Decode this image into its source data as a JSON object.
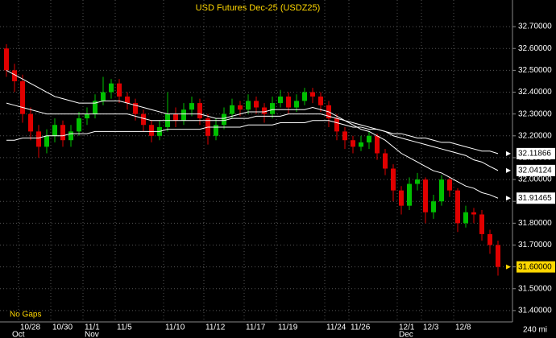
{
  "chart_data": {
    "type": "candlestick",
    "title": "USD Futures Dec-25 (USDZ25)",
    "note": "No Gaps",
    "interval": "240 mi",
    "up_color": "#00c000",
    "down_color": "#e00000",
    "grid": true,
    "categories": [
      null,
      null,
      "10/28",
      null,
      null,
      null,
      "10/30",
      null,
      null,
      null,
      "11/1",
      null,
      null,
      null,
      "11/5",
      null,
      null,
      null,
      null,
      null,
      "11/10",
      null,
      null,
      null,
      null,
      "11/12",
      null,
      null,
      null,
      null,
      "11/17",
      null,
      null,
      null,
      "11/19",
      null,
      null,
      null,
      null,
      null,
      "11/24",
      null,
      null,
      "11/26",
      null,
      null,
      null,
      null,
      null,
      "12/1",
      null,
      null,
      "12/3",
      null,
      null,
      null,
      "12/8",
      null,
      null,
      null,
      null,
      null
    ],
    "months": [
      null,
      "Oct",
      null,
      null,
      null,
      null,
      null,
      null,
      null,
      null,
      "Nov",
      null,
      null,
      null,
      null,
      null,
      null,
      null,
      null,
      null,
      null,
      null,
      null,
      null,
      null,
      null,
      null,
      null,
      null,
      null,
      null,
      null,
      null,
      null,
      null,
      null,
      null,
      null,
      null,
      null,
      null,
      null,
      null,
      null,
      null,
      null,
      null,
      null,
      null,
      "Dec",
      null,
      null,
      null,
      null,
      null,
      null,
      null,
      null,
      null,
      null,
      null,
      null
    ],
    "open": [
      32.6,
      32.5,
      32.45,
      32.3,
      32.22,
      32.15,
      32.2,
      32.25,
      32.18,
      32.22,
      32.28,
      32.3,
      32.36,
      32.4,
      32.44,
      32.38,
      32.35,
      32.3,
      32.25,
      32.2,
      32.24,
      32.3,
      32.27,
      32.32,
      32.35,
      32.28,
      32.2,
      32.25,
      32.3,
      32.34,
      32.32,
      32.36,
      32.33,
      32.3,
      32.35,
      32.38,
      32.33,
      32.36,
      32.4,
      32.38,
      32.34,
      32.28,
      32.22,
      32.18,
      32.15,
      32.17,
      32.2,
      32.12,
      32.05,
      31.95,
      31.88,
      31.98,
      32.0,
      31.85,
      31.9,
      32.0,
      31.95,
      31.8,
      31.85,
      31.84,
      31.75,
      31.7
    ],
    "high": [
      32.62,
      32.53,
      32.48,
      32.33,
      32.25,
      32.23,
      32.28,
      32.27,
      32.25,
      32.31,
      32.33,
      32.39,
      32.47,
      32.46,
      32.46,
      32.4,
      32.37,
      32.32,
      32.27,
      32.27,
      32.4,
      32.33,
      32.35,
      32.38,
      32.37,
      32.3,
      32.28,
      32.33,
      32.37,
      32.36,
      32.39,
      32.38,
      32.35,
      32.38,
      32.41,
      32.4,
      32.39,
      32.42,
      32.42,
      32.4,
      32.36,
      32.3,
      32.24,
      32.2,
      32.2,
      32.22,
      32.21,
      32.14,
      32.07,
      31.97,
      32.01,
      32.03,
      32.01,
      31.93,
      32.02,
      32.01,
      31.96,
      31.88,
      31.87,
      31.86,
      31.77,
      31.72
    ],
    "low": [
      32.47,
      32.4,
      32.26,
      32.18,
      32.1,
      32.12,
      32.17,
      32.15,
      32.15,
      32.2,
      32.25,
      32.28,
      32.34,
      32.37,
      32.35,
      32.32,
      32.27,
      32.22,
      32.17,
      32.18,
      32.22,
      32.24,
      32.25,
      32.29,
      32.25,
      32.16,
      32.18,
      32.23,
      32.28,
      32.29,
      32.3,
      32.3,
      32.26,
      32.28,
      32.33,
      32.3,
      32.31,
      32.34,
      32.35,
      32.31,
      32.24,
      32.18,
      32.14,
      32.12,
      32.13,
      32.14,
      32.09,
      32.02,
      31.9,
      31.84,
      31.86,
      31.95,
      31.8,
      31.82,
      31.88,
      31.92,
      31.76,
      31.78,
      31.8,
      31.72,
      31.66,
      31.56
    ],
    "close": [
      32.5,
      32.45,
      32.3,
      32.22,
      32.15,
      32.2,
      32.25,
      32.18,
      32.22,
      32.28,
      32.3,
      32.36,
      32.4,
      32.44,
      32.38,
      32.35,
      32.3,
      32.25,
      32.2,
      32.24,
      32.3,
      32.27,
      32.32,
      32.35,
      32.28,
      32.2,
      32.25,
      32.3,
      32.34,
      32.32,
      32.36,
      32.33,
      32.3,
      32.35,
      32.38,
      32.33,
      32.36,
      32.4,
      32.38,
      32.34,
      32.28,
      32.22,
      32.18,
      32.15,
      32.17,
      32.2,
      32.12,
      32.05,
      31.95,
      31.88,
      31.98,
      32.0,
      31.85,
      31.9,
      32.0,
      31.95,
      31.8,
      31.85,
      31.84,
      31.75,
      31.7,
      31.6
    ],
    "last_price": {
      "value": 31.6,
      "label": "31.60000"
    },
    "series": [
      {
        "color": "#ffffff",
        "values": [
          32.5,
          32.48,
          32.46,
          32.44,
          32.42,
          32.4,
          32.38,
          32.37,
          32.36,
          32.35,
          32.35,
          32.35,
          32.36,
          32.36,
          32.36,
          32.35,
          32.34,
          32.33,
          32.32,
          32.31,
          32.3,
          32.3,
          32.3,
          32.3,
          32.3,
          32.29,
          32.28,
          32.28,
          32.29,
          32.3,
          32.31,
          32.31,
          32.31,
          32.32,
          32.32,
          32.32,
          32.32,
          32.32,
          32.33,
          32.32,
          32.31,
          32.29,
          32.27,
          32.25,
          32.23,
          32.22,
          32.2,
          32.18,
          32.15,
          32.12,
          32.1,
          32.08,
          32.06,
          32.04,
          32.03,
          32.01,
          31.99,
          31.97,
          31.96,
          31.94,
          31.93,
          31.91465
        ]
      },
      {
        "color": "#ffffff",
        "values": [
          32.35,
          32.34,
          32.33,
          32.32,
          32.31,
          32.3,
          32.3,
          32.3,
          32.3,
          32.3,
          32.3,
          32.3,
          32.3,
          32.3,
          32.3,
          32.3,
          32.29,
          32.28,
          32.27,
          32.27,
          32.27,
          32.27,
          32.27,
          32.27,
          32.27,
          32.27,
          32.27,
          32.27,
          32.28,
          32.28,
          32.28,
          32.29,
          32.29,
          32.29,
          32.29,
          32.3,
          32.3,
          32.3,
          32.3,
          32.3,
          32.29,
          32.28,
          32.27,
          32.26,
          32.25,
          32.24,
          32.23,
          32.22,
          32.2,
          32.19,
          32.18,
          32.17,
          32.16,
          32.15,
          32.14,
          32.13,
          32.12,
          32.11,
          32.09,
          32.08,
          32.06,
          32.04124
        ]
      },
      {
        "color": "#ffffff",
        "values": [
          32.18,
          32.18,
          32.19,
          32.19,
          32.19,
          32.2,
          32.2,
          32.2,
          32.21,
          32.21,
          32.21,
          32.22,
          32.22,
          32.22,
          32.22,
          32.22,
          32.22,
          32.22,
          32.22,
          32.22,
          32.23,
          32.23,
          32.23,
          32.23,
          32.23,
          32.24,
          32.24,
          32.24,
          32.24,
          32.24,
          32.25,
          32.25,
          32.25,
          32.25,
          32.26,
          32.26,
          32.26,
          32.26,
          32.27,
          32.27,
          32.27,
          32.26,
          32.25,
          32.24,
          32.24,
          32.23,
          32.23,
          32.22,
          32.21,
          32.21,
          32.2,
          32.19,
          32.19,
          32.18,
          32.17,
          32.17,
          32.16,
          32.15,
          32.14,
          32.13,
          32.13,
          32.11866
        ]
      }
    ],
    "ylim": [
      31.348,
      32.822
    ],
    "yticks": [
      {
        "value": 31.4,
        "label": "31.40000"
      },
      {
        "value": 31.5,
        "label": "31.50000"
      },
      {
        "value": 31.6,
        "label": "31.60000"
      },
      {
        "value": 31.7,
        "label": "31.70000"
      },
      {
        "value": 31.8,
        "label": "31.80000"
      },
      {
        "value": 31.9,
        "label": "31.90000"
      },
      {
        "value": 32.0,
        "label": "32.00000"
      },
      {
        "value": 32.1,
        "label": "32.10000"
      },
      {
        "value": 32.2,
        "label": "32.20000"
      },
      {
        "value": 32.3,
        "label": "32.30000"
      },
      {
        "value": 32.4,
        "label": "32.40000"
      },
      {
        "value": 32.5,
        "label": "32.50000"
      },
      {
        "value": 32.6,
        "label": "32.60000"
      },
      {
        "value": 32.7,
        "label": "32.70000"
      }
    ]
  }
}
